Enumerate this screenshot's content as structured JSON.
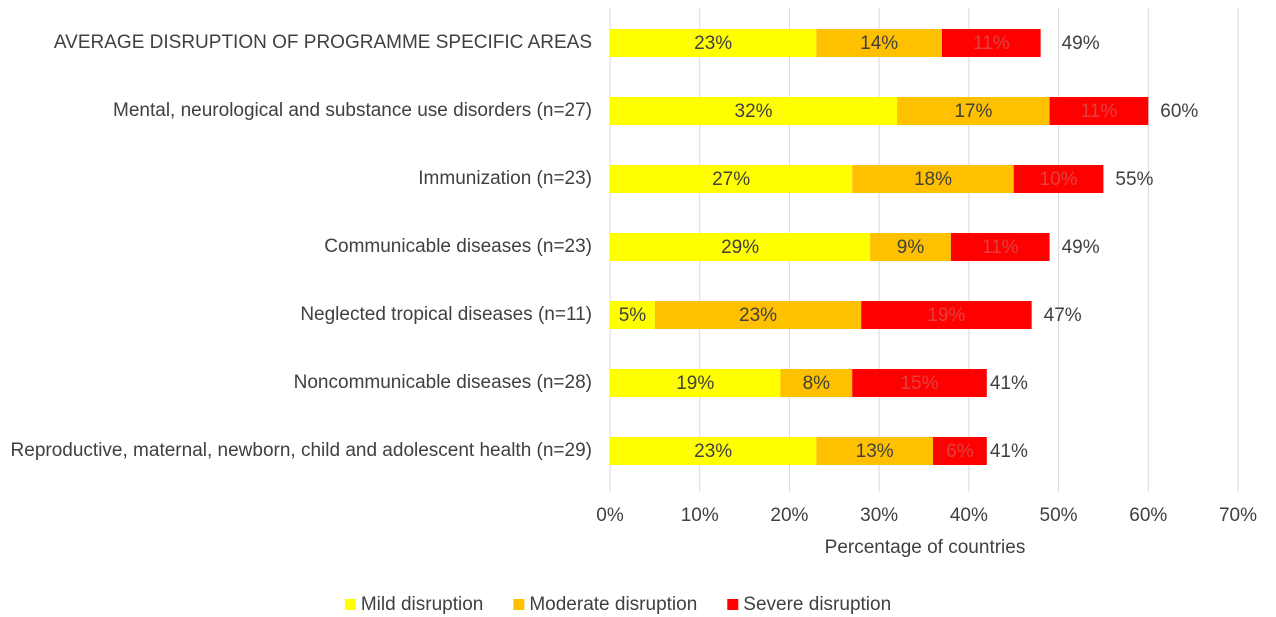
{
  "chart_data": {
    "type": "stacked_bar_horizontal",
    "categories": [
      "AVERAGE DISRUPTION OF PROGRAMME SPECIFIC AREAS",
      "Mental, neurological and substance use disorders (n=27)",
      "Immunization (n=23)",
      "Communicable diseases (n=23)",
      "Neglected tropical diseases (n=11)",
      "Noncommunicable diseases (n=28)",
      "Reproductive, maternal, newborn, child and adolescent health (n=29)"
    ],
    "series": [
      {
        "name": "Mild disruption",
        "color": "#ffff00",
        "values": [
          23,
          32,
          27,
          29,
          5,
          19,
          23
        ],
        "value_labels": [
          "23%",
          "32%",
          "27%",
          "29%",
          "5%",
          "19%",
          "23%"
        ]
      },
      {
        "name": "Moderate disruption",
        "color": "#ffc000",
        "values": [
          14,
          17,
          18,
          9,
          23,
          8,
          13
        ],
        "value_labels": [
          "14%",
          "17%",
          "18%",
          "9%",
          "23%",
          "8%",
          "13%"
        ]
      },
      {
        "name": "Severe disruption",
        "color": "#ff0000",
        "values": [
          11,
          11,
          10,
          11,
          19,
          15,
          6
        ],
        "value_labels": [
          "11%",
          "11%",
          "10%",
          "11%",
          "19%",
          "15%",
          "6%"
        ]
      }
    ],
    "totals": [
      49,
      60,
      55,
      49,
      47,
      41,
      41
    ],
    "total_labels": [
      "49%",
      "60%",
      "55%",
      "49%",
      "47%",
      "41%",
      "41%"
    ],
    "xlabel": "Percentage of countries",
    "xlim": [
      0,
      70
    ],
    "xticks": [
      {
        "value": 0,
        "label": "0%"
      },
      {
        "value": 10,
        "label": "10%"
      },
      {
        "value": 20,
        "label": "20%"
      },
      {
        "value": 30,
        "label": "30%"
      },
      {
        "value": 40,
        "label": "40%"
      },
      {
        "value": 50,
        "label": "50%"
      },
      {
        "value": 60,
        "label": "60%"
      },
      {
        "value": 70,
        "label": "70%"
      }
    ],
    "grid": true,
    "legend": "bottom"
  }
}
